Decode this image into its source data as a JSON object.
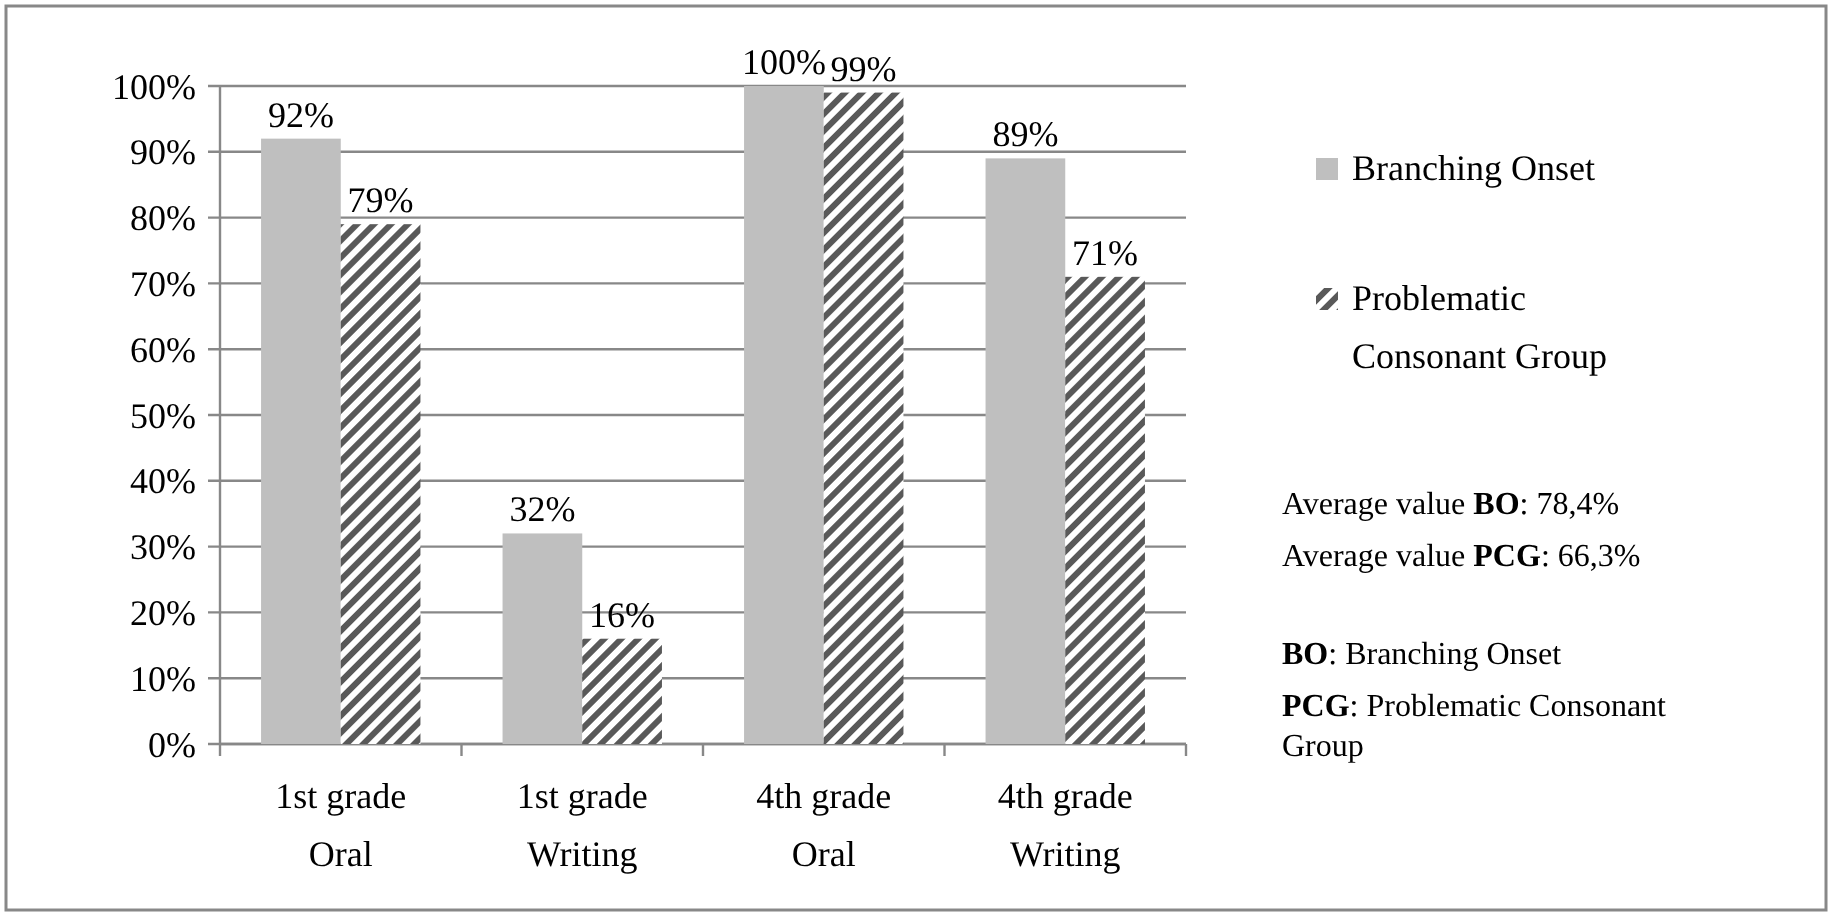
{
  "chart_data": {
    "type": "bar",
    "categories": [
      "1st grade\nOral",
      "1st grade\nWriting",
      "4th grade\nOral",
      "4th grade\nWriting"
    ],
    "series": [
      {
        "name": "Branching Onset",
        "color": "#bfbfbf",
        "values": [
          92,
          32,
          100,
          89
        ],
        "value_labels": [
          "92%",
          "32%",
          "100%",
          "89%"
        ]
      },
      {
        "name": "Problematic Consonant Group",
        "color": "#595959",
        "values": [
          79,
          16,
          99,
          71
        ],
        "value_labels": [
          "79%",
          "16%",
          "99%",
          "71%"
        ]
      }
    ],
    "ylim": [
      0,
      100
    ],
    "yticks": [
      {
        "value": 0,
        "label": "0%"
      },
      {
        "value": 10,
        "label": "10%"
      },
      {
        "value": 20,
        "label": "20%"
      },
      {
        "value": 30,
        "label": "30%"
      },
      {
        "value": 40,
        "label": "40%"
      },
      {
        "value": 50,
        "label": "50%"
      },
      {
        "value": 60,
        "label": "60%"
      },
      {
        "value": 70,
        "label": "70%"
      },
      {
        "value": 80,
        "label": "80%"
      },
      {
        "value": 90,
        "label": "90%"
      },
      {
        "value": 100,
        "label": "100%"
      }
    ],
    "grid": "y",
    "legend": "right",
    "annotations": [
      "Average value BO: 78,4%",
      "Average value PCG: 66,3%",
      "BO: Branching Onset",
      "PCG: Problematic Consonant Group"
    ]
  }
}
